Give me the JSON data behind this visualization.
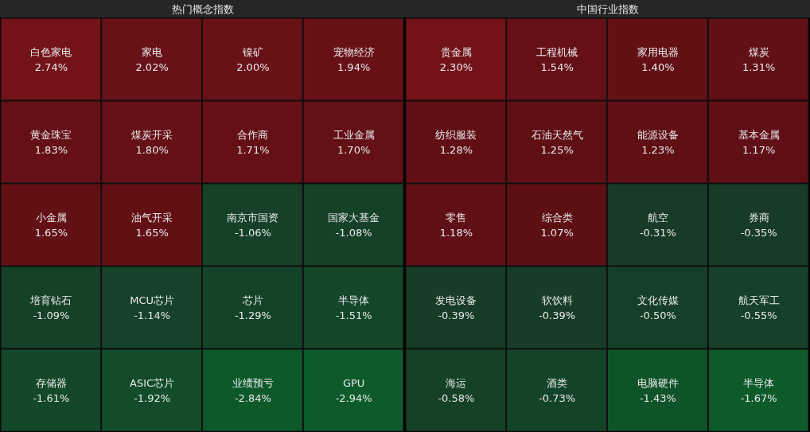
{
  "chart_data": [
    {
      "type": "other",
      "title": "热门概念指数",
      "categories": [
        "白色家电",
        "家电",
        "镍矿",
        "宠物经济",
        "黄金珠宝",
        "煤炭开采",
        "合作商",
        "工业金属",
        "小金属",
        "油气开采",
        "南京市国资",
        "国家大基金",
        "培育钻石",
        "MCU芯片",
        "芯片",
        "半导体",
        "存储器",
        "ASIC芯片",
        "业绩预亏",
        "GPU"
      ],
      "values": [
        2.74,
        2.02,
        2.0,
        1.94,
        1.83,
        1.8,
        1.71,
        1.7,
        1.65,
        1.65,
        -1.06,
        -1.08,
        -1.09,
        -1.14,
        -1.29,
        -1.51,
        -1.61,
        -1.92,
        -2.84,
        -2.94
      ],
      "value_labels": [
        "2.74%",
        "2.02%",
        "2.00%",
        "1.94%",
        "1.83%",
        "1.80%",
        "1.71%",
        "1.70%",
        "1.65%",
        "1.65%",
        "-1.06%",
        "-1.08%",
        "-1.09%",
        "-1.14%",
        "-1.29%",
        "-1.51%",
        "-1.61%",
        "-1.92%",
        "-2.84%",
        "-2.94%"
      ]
    },
    {
      "type": "other",
      "title": "中国行业指数",
      "categories": [
        "贵金属",
        "工程机械",
        "家用电器",
        "煤炭",
        "纺织服装",
        "石油天然气",
        "能源设备",
        "基本金属",
        "零售",
        "综合类",
        "航空",
        "券商",
        "发电设备",
        "软饮料",
        "文化传媒",
        "航天军工",
        "海运",
        "酒类",
        "电脑硬件",
        "半导体"
      ],
      "values": [
        2.3,
        1.54,
        1.4,
        1.31,
        1.28,
        1.25,
        1.23,
        1.17,
        1.18,
        1.07,
        -0.31,
        -0.35,
        -0.39,
        -0.39,
        -0.5,
        -0.55,
        -0.58,
        -0.73,
        -1.43,
        -1.67
      ],
      "value_labels": [
        "2.30%",
        "1.54%",
        "1.40%",
        "1.31%",
        "1.28%",
        "1.25%",
        "1.23%",
        "1.17%",
        "1.18%",
        "1.07%",
        "-0.31%",
        "-0.35%",
        "-0.39%",
        "-0.39%",
        "-0.50%",
        "-0.55%",
        "-0.58%",
        "-0.73%",
        "-1.43%",
        "-1.67%"
      ]
    }
  ]
}
